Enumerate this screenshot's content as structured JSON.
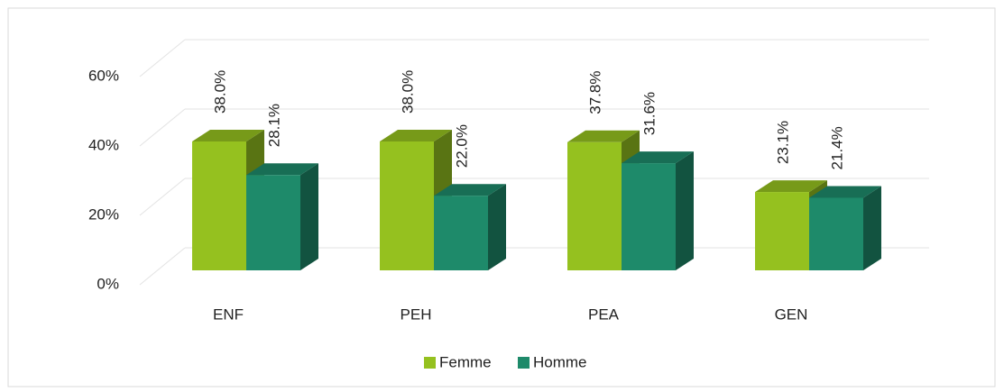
{
  "chart_data": {
    "type": "bar3d",
    "categories": [
      "ENF",
      "PEH",
      "PEA",
      "GEN"
    ],
    "series": [
      {
        "name": "Femme",
        "color": "#95c11f",
        "values": [
          38.0,
          38.0,
          37.8,
          23.1
        ],
        "value_labels": [
          "38.0%",
          "38.0%",
          "37.8%",
          "23.1%"
        ]
      },
      {
        "name": "Homme",
        "color": "#1e8a6a",
        "values": [
          28.1,
          22.0,
          31.6,
          21.4
        ],
        "value_labels": [
          "28.1%",
          "22.0%",
          "31.6%",
          "21.4%"
        ]
      }
    ],
    "ylim": [
      0,
      60
    ],
    "yticks": [
      {
        "value": 0,
        "label": "0%"
      },
      {
        "value": 20,
        "label": "20%"
      },
      {
        "value": 40,
        "label": "40%"
      },
      {
        "value": 60,
        "label": "60%"
      }
    ],
    "grid": true,
    "legend": "bottom"
  }
}
